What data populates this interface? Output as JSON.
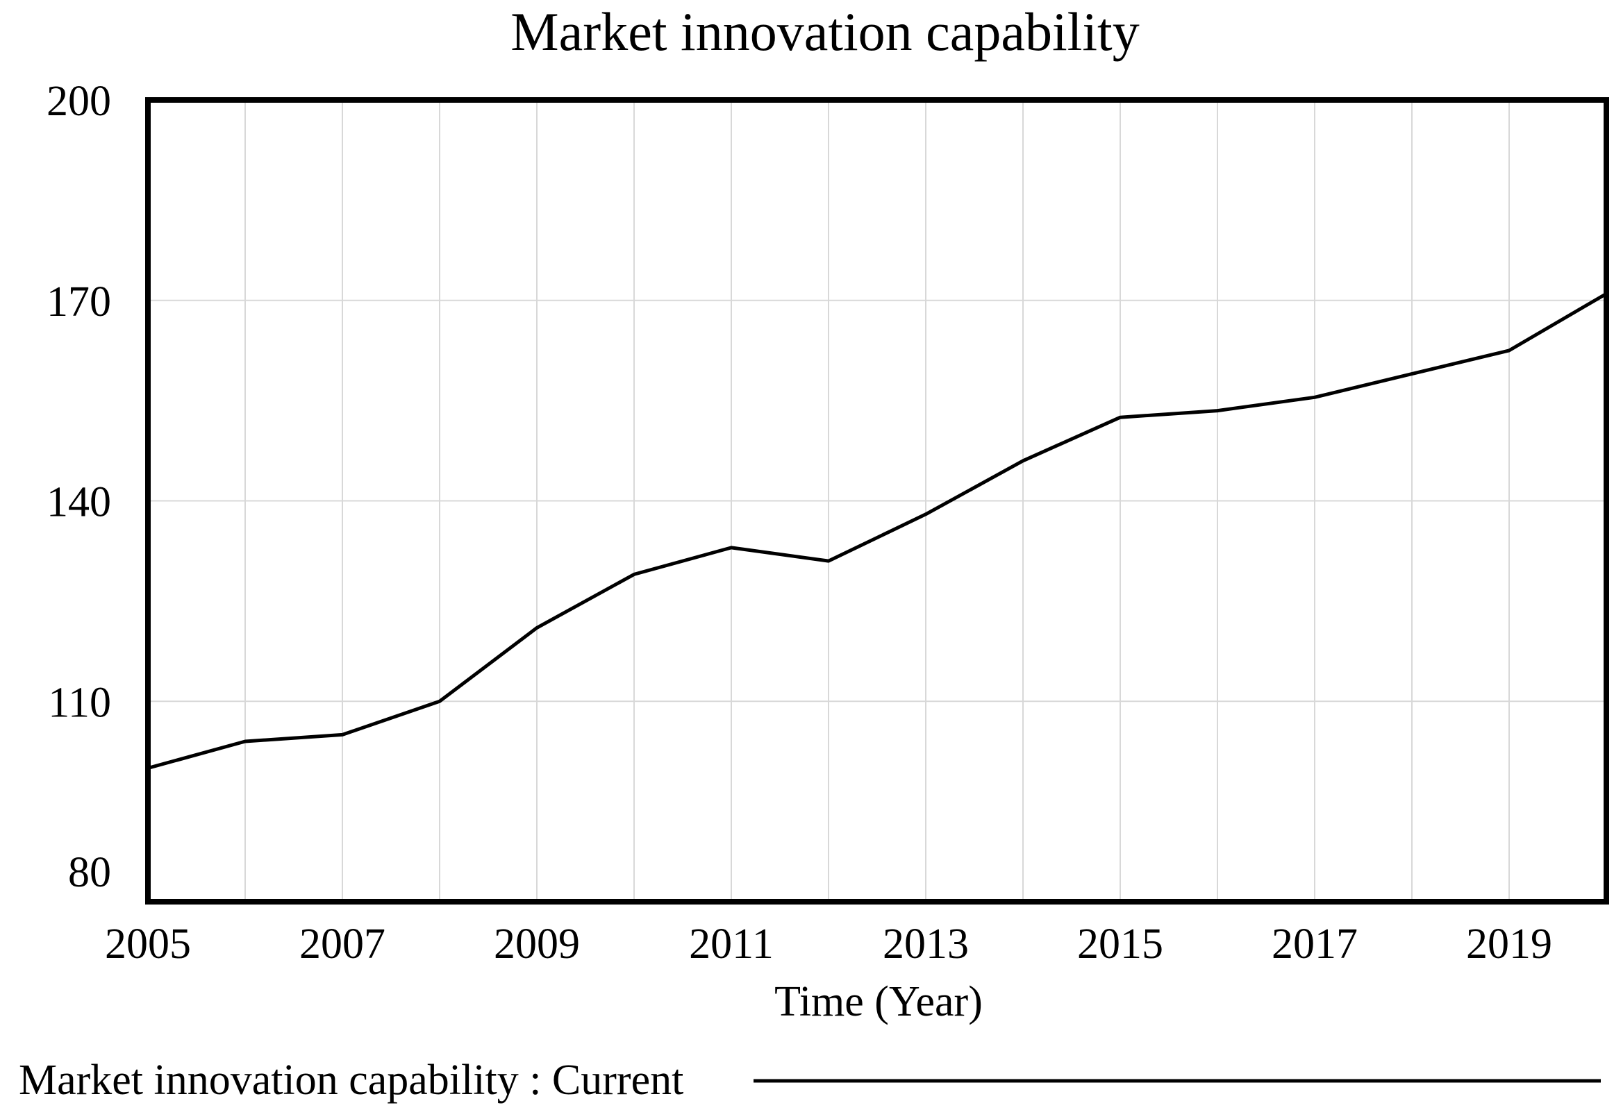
{
  "chart_data": {
    "type": "line",
    "title": "Market innovation capability",
    "xlabel": "Time (Year)",
    "ylabel": "",
    "xlim": [
      2005,
      2020
    ],
    "ylim": [
      80,
      200
    ],
    "x_ticks": [
      2005,
      2007,
      2009,
      2011,
      2013,
      2015,
      2017,
      2019
    ],
    "y_ticks": [
      80,
      110,
      140,
      170,
      200
    ],
    "x_grid": [
      2005,
      2006,
      2007,
      2008,
      2009,
      2010,
      2011,
      2012,
      2013,
      2014,
      2015,
      2016,
      2017,
      2018,
      2019,
      2020
    ],
    "y_grid": [
      80,
      110,
      140,
      170,
      200
    ],
    "grid": true,
    "legend_position": "bottom",
    "series": [
      {
        "name": "Market innovation capability : Current",
        "color": "#000000",
        "x": [
          2005,
          2006,
          2007,
          2008,
          2009,
          2010,
          2011,
          2012,
          2013,
          2014,
          2015,
          2016,
          2017,
          2018,
          2019,
          2020
        ],
        "values": [
          100,
          104,
          105,
          110,
          121,
          129,
          133,
          131,
          138,
          146,
          152.5,
          153.5,
          155.5,
          159,
          162.5,
          171
        ]
      }
    ]
  }
}
